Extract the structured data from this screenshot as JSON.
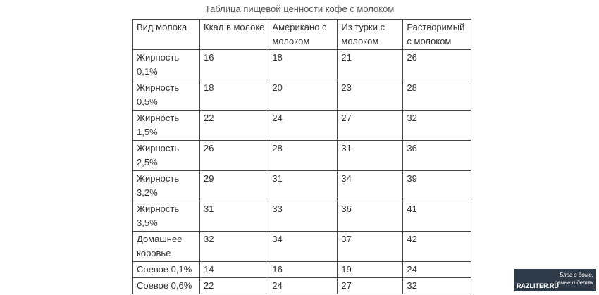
{
  "title": "Таблица пищевой ценности кофе с молоком",
  "table": {
    "header": [
      "Вид молока",
      "Ккал в молоке",
      "Американо с молоком",
      "Из турки с молоком",
      "Растворимый с молоком"
    ],
    "rows": [
      [
        "Жирность 0,1%",
        16,
        18,
        21,
        26
      ],
      [
        "Жирность 0,5%",
        18,
        20,
        23,
        28
      ],
      [
        "Жирность 1,5%",
        22,
        24,
        27,
        32
      ],
      [
        "Жирность 2,5%",
        26,
        28,
        31,
        36
      ],
      [
        "Жирность 3,2%",
        29,
        31,
        34,
        39
      ],
      [
        "Жирность 3,5%",
        31,
        33,
        36,
        41
      ],
      [
        "Домашнее коровье",
        32,
        34,
        37,
        42
      ],
      [
        "Соевое 0,1%",
        14,
        16,
        19,
        24
      ],
      [
        "Соевое 0,6%",
        22,
        24,
        27,
        32
      ]
    ]
  },
  "logo": {
    "site": "RAZLITER.RU",
    "tagline": "Блог о доме, семье и детях"
  }
}
